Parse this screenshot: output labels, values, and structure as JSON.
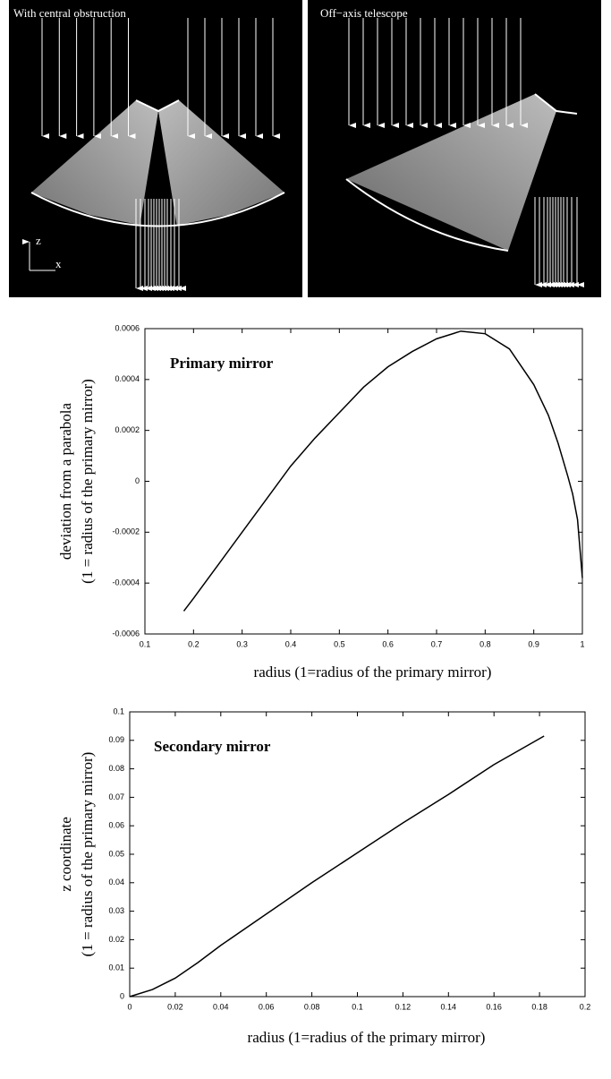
{
  "panels": [
    {
      "title": "With central obstruction",
      "axis_labels": [
        "z",
        "x"
      ]
    },
    {
      "title": "Off−axis telescope"
    }
  ],
  "chart_data": [
    {
      "type": "line",
      "annotation": "Primary mirror",
      "xlabel": "radius (1=radius of the primary mirror)",
      "ylabel": [
        "deviation from a parabola",
        "(1 = radius of the primary mirror)"
      ],
      "x": [
        0.18,
        0.2,
        0.25,
        0.3,
        0.35,
        0.4,
        0.45,
        0.5,
        0.55,
        0.6,
        0.65,
        0.7,
        0.75,
        0.8,
        0.85,
        0.9,
        0.93,
        0.95,
        0.97,
        0.98,
        0.99,
        1.0
      ],
      "series": [
        {
          "color": "#000000",
          "values": [
            -0.00051,
            -0.00046,
            -0.00033,
            -0.0002,
            -7e-05,
            6e-05,
            0.00017,
            0.00027,
            0.00037,
            0.00045,
            0.00051,
            0.00056,
            0.00059,
            0.00058,
            0.00052,
            0.00038,
            0.00026,
            0.00015,
            2e-05,
            -5e-05,
            -0.00015,
            -0.00038
          ]
        }
      ],
      "xlim": [
        0.1,
        1
      ],
      "xticks": [
        0.1,
        0.2,
        0.3,
        0.4,
        0.5,
        0.6,
        0.7,
        0.8,
        0.9,
        1
      ],
      "ylim": [
        -0.0006,
        0.0006
      ],
      "yticks": [
        -0.0006,
        -0.0004,
        -0.0002,
        0,
        0.0002,
        0.0004,
        0.0006
      ]
    },
    {
      "type": "line",
      "annotation": "Secondary mirror",
      "xlabel": "radius (1=radius of the primary mirror)",
      "ylabel": [
        "z coordinate",
        "(1 = radius of the primary mirror)"
      ],
      "x": [
        0,
        0.01,
        0.02,
        0.03,
        0.04,
        0.06,
        0.08,
        0.1,
        0.12,
        0.14,
        0.16,
        0.182
      ],
      "series": [
        {
          "color": "#000000",
          "values": [
            0,
            0.0025,
            0.0065,
            0.012,
            0.018,
            0.029,
            0.04,
            0.0505,
            0.061,
            0.071,
            0.0815,
            0.0915
          ]
        }
      ],
      "xlim": [
        0,
        0.2
      ],
      "xticks": [
        0,
        0.02,
        0.04,
        0.06,
        0.08,
        0.1,
        0.12,
        0.14,
        0.16,
        0.18,
        0.2
      ],
      "ylim": [
        0,
        0.1
      ],
      "yticks": [
        0,
        0.01,
        0.02,
        0.03,
        0.04,
        0.05,
        0.06,
        0.07,
        0.08,
        0.09,
        0.1
      ]
    }
  ]
}
